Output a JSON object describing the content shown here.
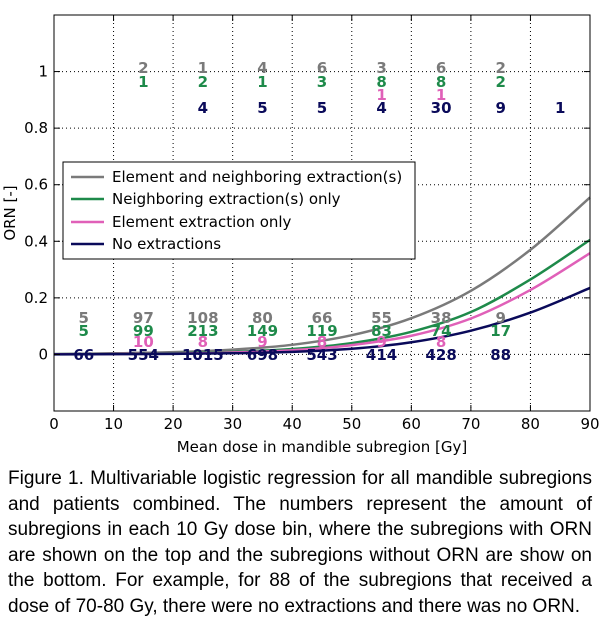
{
  "chart_data": {
    "type": "line",
    "xlabel": "Mean dose in mandible subregion [Gy]",
    "ylabel": "ORN [-]",
    "xlim": [
      0,
      90
    ],
    "ylim": [
      -0.2,
      1.2
    ],
    "xticks": [
      0,
      10,
      20,
      30,
      40,
      50,
      60,
      70,
      80,
      90
    ],
    "yticks": [
      0,
      0.2,
      0.4,
      0.6,
      0.8,
      1
    ],
    "ytick_labels": [
      "0",
      "0.2",
      "0.4",
      "0.6",
      "0.8",
      "1"
    ],
    "grid": true,
    "legend_position": "center-left",
    "series": [
      {
        "name": "Element and neighboring extraction(s)",
        "color": "#7a7a7a",
        "x": [
          0,
          10,
          20,
          30,
          40,
          50,
          60,
          70,
          80,
          90
        ],
        "y": [
          0.001,
          0.004,
          0.008,
          0.017,
          0.034,
          0.068,
          0.128,
          0.225,
          0.37,
          0.555
        ]
      },
      {
        "name": "Neighboring extraction(s) only",
        "color": "#1e8a4a",
        "x": [
          0,
          10,
          20,
          30,
          40,
          50,
          60,
          70,
          80,
          90
        ],
        "y": [
          0.001,
          0.002,
          0.004,
          0.009,
          0.019,
          0.04,
          0.08,
          0.15,
          0.265,
          0.405
        ]
      },
      {
        "name": "Element extraction only",
        "color": "#e060b8",
        "x": [
          0,
          10,
          20,
          30,
          40,
          50,
          60,
          70,
          80,
          90
        ],
        "y": [
          0.0005,
          0.0015,
          0.003,
          0.007,
          0.015,
          0.033,
          0.066,
          0.127,
          0.228,
          0.358
        ]
      },
      {
        "name": "No extractions",
        "color": "#0a0a5a",
        "x": [
          0,
          10,
          20,
          30,
          40,
          50,
          60,
          70,
          80,
          90
        ],
        "y": [
          0.0003,
          0.001,
          0.002,
          0.004,
          0.009,
          0.02,
          0.043,
          0.084,
          0.148,
          0.235
        ]
      }
    ],
    "annotations_top": [
      {
        "bin_center": 15,
        "rows": [
          [
            "2",
            "#7a7a7a"
          ],
          [
            "1",
            "#1e8a4a"
          ],
          [
            "",
            ""
          ],
          [
            "",
            ""
          ]
        ]
      },
      {
        "bin_center": 25,
        "rows": [
          [
            "1",
            "#7a7a7a"
          ],
          [
            "2",
            "#1e8a4a"
          ],
          [
            "",
            ""
          ],
          [
            "4",
            "#0a0a5a"
          ]
        ]
      },
      {
        "bin_center": 35,
        "rows": [
          [
            "4",
            "#7a7a7a"
          ],
          [
            "1",
            "#1e8a4a"
          ],
          [
            "",
            ""
          ],
          [
            "5",
            "#0a0a5a"
          ]
        ]
      },
      {
        "bin_center": 45,
        "rows": [
          [
            "6",
            "#7a7a7a"
          ],
          [
            "3",
            "#1e8a4a"
          ],
          [
            "",
            ""
          ],
          [
            "5",
            "#0a0a5a"
          ]
        ]
      },
      {
        "bin_center": 55,
        "rows": [
          [
            "3",
            "#7a7a7a"
          ],
          [
            "8",
            "#1e8a4a"
          ],
          [
            "1",
            "#e060b8"
          ],
          [
            "4",
            "#0a0a5a"
          ]
        ]
      },
      {
        "bin_center": 65,
        "rows": [
          [
            "6",
            "#7a7a7a"
          ],
          [
            "8",
            "#1e8a4a"
          ],
          [
            "1",
            "#e060b8"
          ],
          [
            "30",
            "#0a0a5a"
          ]
        ]
      },
      {
        "bin_center": 75,
        "rows": [
          [
            "2",
            "#7a7a7a"
          ],
          [
            "2",
            "#1e8a4a"
          ],
          [
            "",
            ""
          ],
          [
            "9",
            "#0a0a5a"
          ]
        ]
      },
      {
        "bin_center": 85,
        "rows": [
          [
            "",
            ""
          ],
          [
            "",
            ""
          ],
          [
            "",
            ""
          ],
          [
            "1",
            "#0a0a5a"
          ]
        ]
      }
    ],
    "annotations_bottom": [
      {
        "bin_center": 5,
        "rows": [
          [
            "5",
            "#7a7a7a"
          ],
          [
            "5",
            "#1e8a4a"
          ],
          [
            "",
            ""
          ],
          [
            "66",
            "#0a0a5a"
          ]
        ]
      },
      {
        "bin_center": 15,
        "rows": [
          [
            "97",
            "#7a7a7a"
          ],
          [
            "99",
            "#1e8a4a"
          ],
          [
            "10",
            "#e060b8"
          ],
          [
            "554",
            "#0a0a5a"
          ]
        ]
      },
      {
        "bin_center": 25,
        "rows": [
          [
            "108",
            "#7a7a7a"
          ],
          [
            "213",
            "#1e8a4a"
          ],
          [
            "8",
            "#e060b8"
          ],
          [
            "1015",
            "#0a0a5a"
          ]
        ]
      },
      {
        "bin_center": 35,
        "rows": [
          [
            "80",
            "#7a7a7a"
          ],
          [
            "149",
            "#1e8a4a"
          ],
          [
            "9",
            "#e060b8"
          ],
          [
            "698",
            "#0a0a5a"
          ]
        ]
      },
      {
        "bin_center": 45,
        "rows": [
          [
            "66",
            "#7a7a7a"
          ],
          [
            "119",
            "#1e8a4a"
          ],
          [
            "8",
            "#e060b8"
          ],
          [
            "543",
            "#0a0a5a"
          ]
        ]
      },
      {
        "bin_center": 55,
        "rows": [
          [
            "55",
            "#7a7a7a"
          ],
          [
            "83",
            "#1e8a4a"
          ],
          [
            "9",
            "#e060b8"
          ],
          [
            "414",
            "#0a0a5a"
          ]
        ]
      },
      {
        "bin_center": 65,
        "rows": [
          [
            "38",
            "#7a7a7a"
          ],
          [
            "74",
            "#1e8a4a"
          ],
          [
            "8",
            "#e060b8"
          ],
          [
            "428",
            "#0a0a5a"
          ]
        ]
      },
      {
        "bin_center": 75,
        "rows": [
          [
            "9",
            "#7a7a7a"
          ],
          [
            "17",
            "#1e8a4a"
          ],
          [
            "",
            ""
          ],
          [
            "88",
            "#0a0a5a"
          ]
        ]
      }
    ]
  },
  "caption": "Figure 1. Multivariable logistic regression for all mandible subregions and patients combined. The numbers represent the amount of subregions in each 10 Gy dose bin, where the subregions with ORN are shown on the top and the subregions without ORN are show on the bottom. For example, for 88 of the subregions that received a dose of 70-80 Gy, there were no extractions and there was no ORN."
}
